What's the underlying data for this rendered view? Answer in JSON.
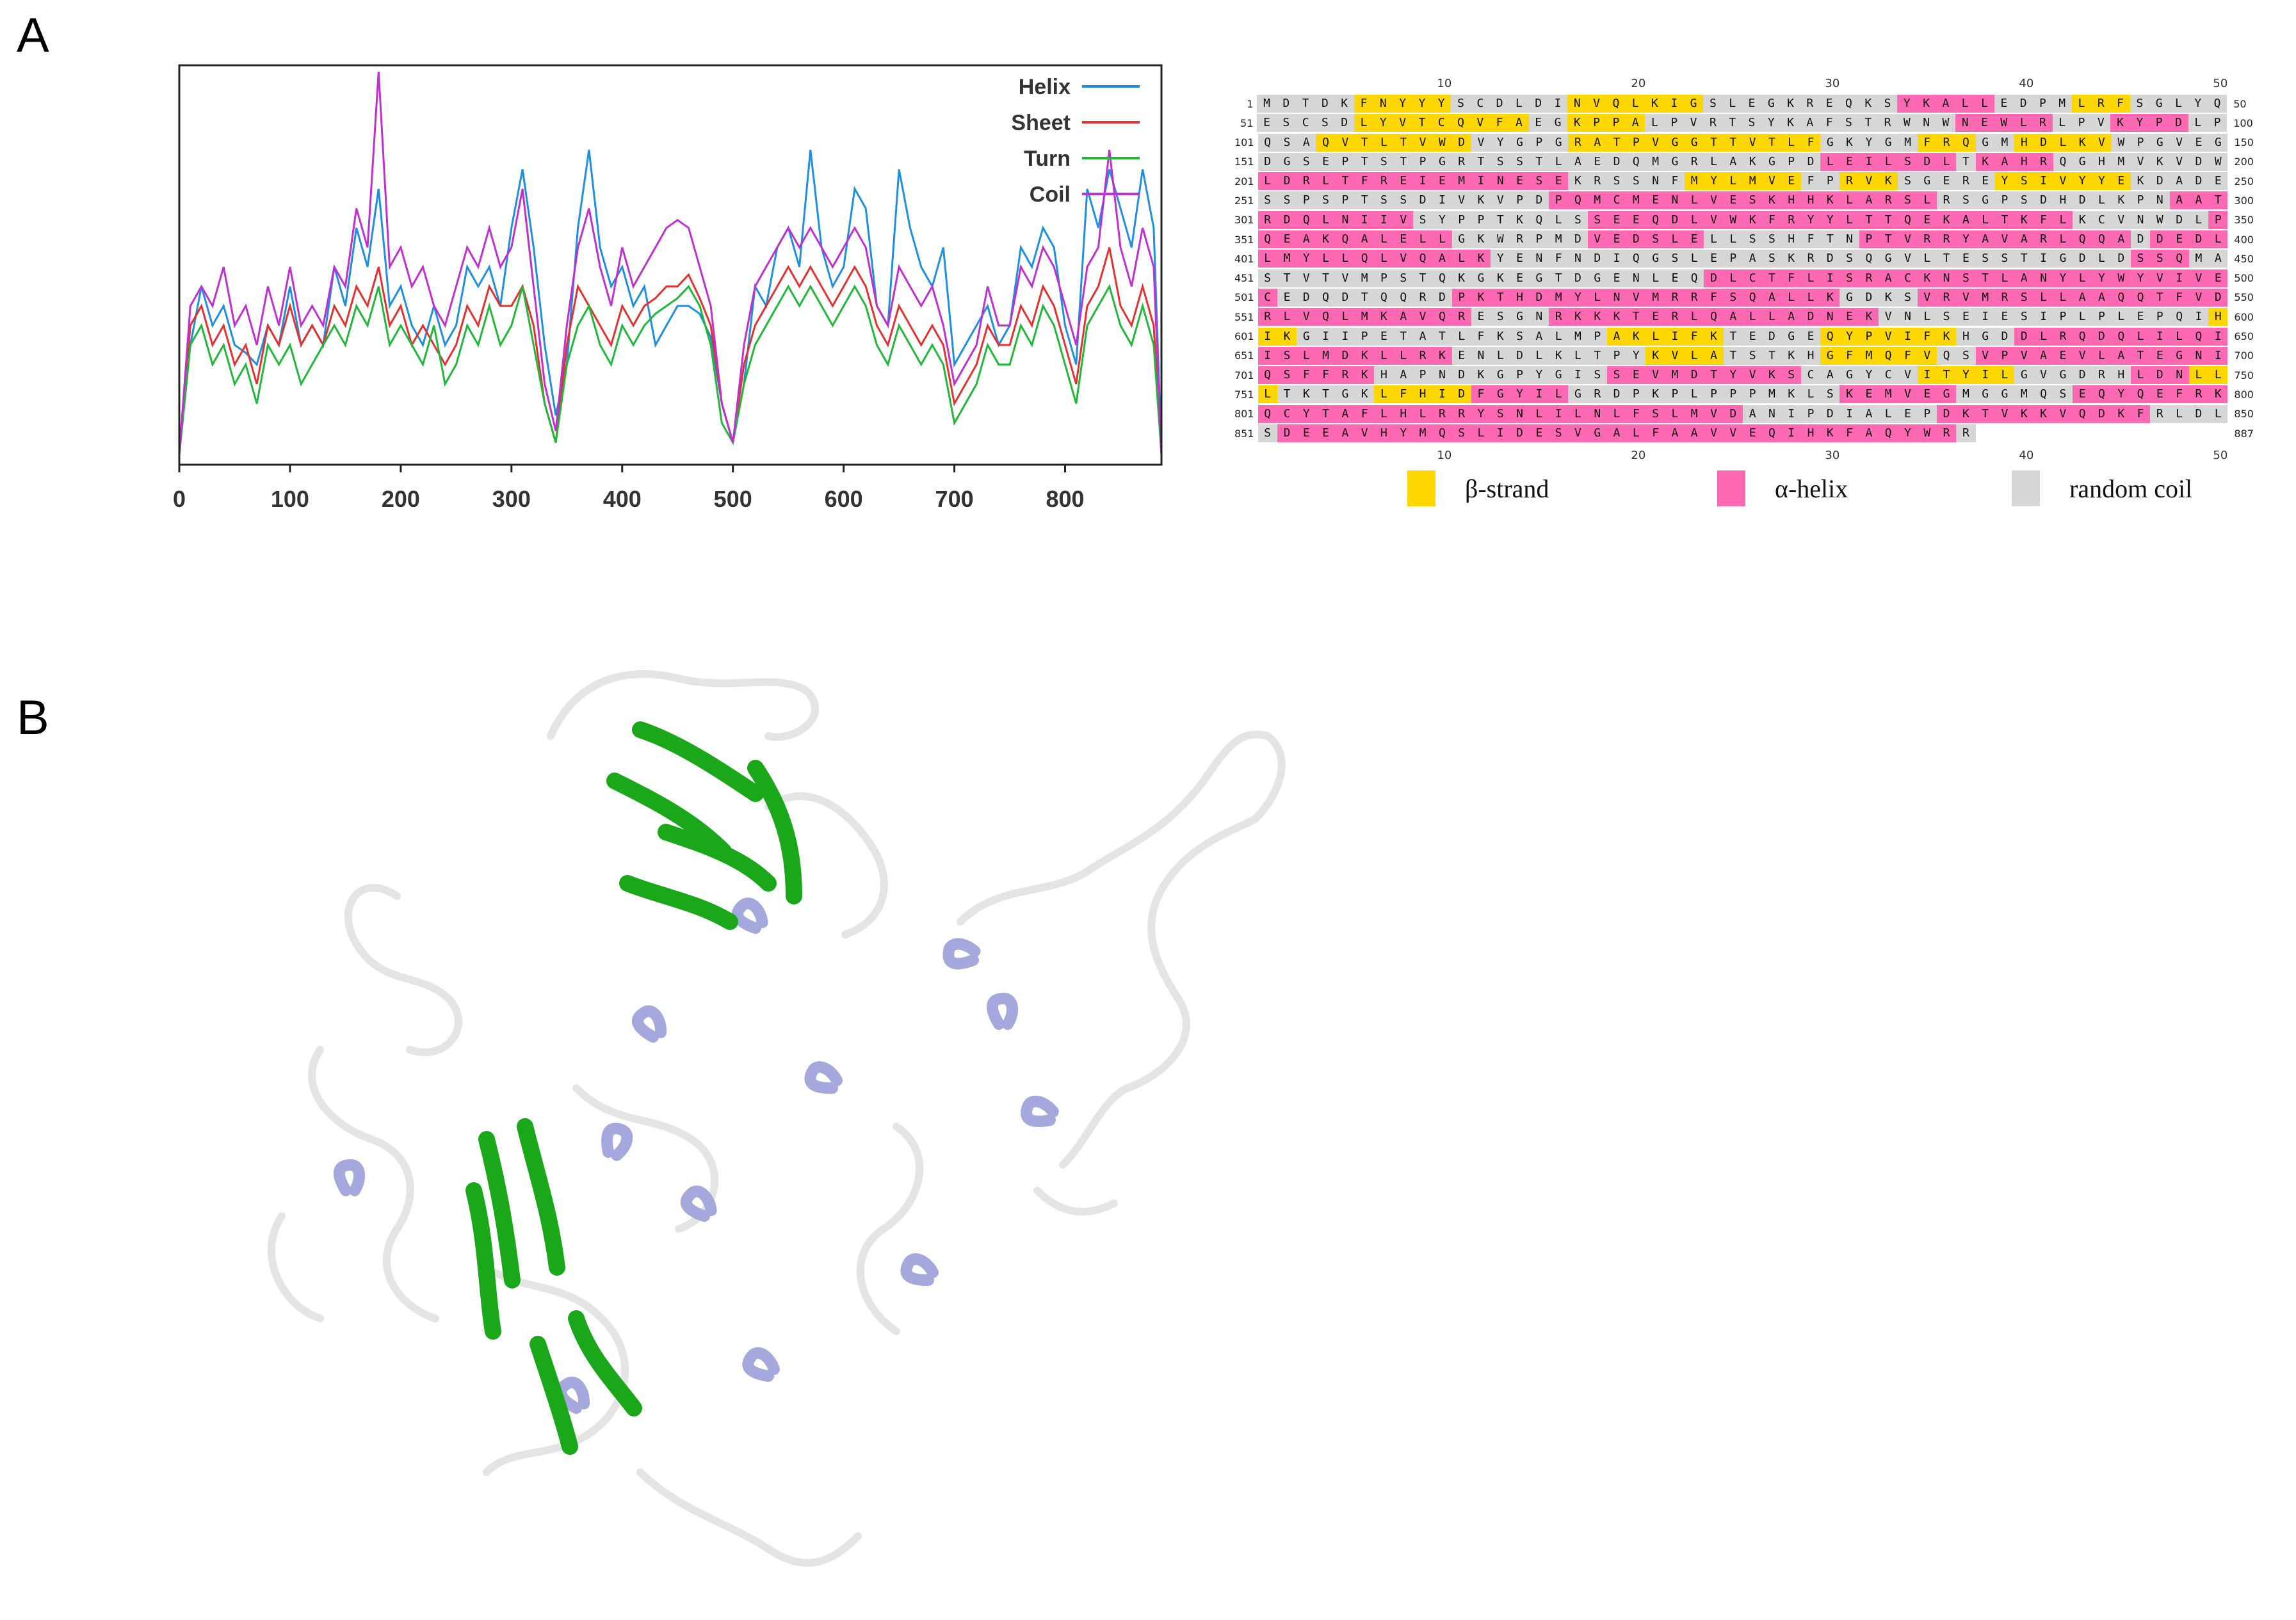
{
  "panels": {
    "a_label": "A",
    "b_label": "B"
  },
  "chart_data": {
    "type": "line",
    "title": "",
    "xlabel": "",
    "ylabel": "",
    "xlim": [
      0,
      887
    ],
    "x_ticks": [
      "0",
      "100",
      "200",
      "300",
      "400",
      "500",
      "600",
      "700",
      "800"
    ],
    "legend_position": "top-right",
    "grid": false,
    "series": [
      {
        "name": "Helix",
        "color": "#1e8fe0",
        "x": [
          0,
          10,
          20,
          30,
          40,
          50,
          60,
          70,
          80,
          90,
          100,
          110,
          120,
          130,
          140,
          150,
          160,
          170,
          180,
          190,
          200,
          210,
          220,
          230,
          240,
          250,
          260,
          270,
          280,
          290,
          300,
          310,
          320,
          330,
          340,
          350,
          360,
          370,
          380,
          390,
          400,
          410,
          420,
          430,
          440,
          450,
          460,
          470,
          480,
          490,
          500,
          510,
          520,
          530,
          540,
          550,
          560,
          570,
          580,
          590,
          600,
          610,
          620,
          630,
          640,
          650,
          660,
          670,
          680,
          690,
          700,
          710,
          720,
          730,
          740,
          750,
          760,
          770,
          780,
          790,
          800,
          810,
          820,
          830,
          840,
          850,
          860,
          870,
          880,
          887
        ],
        "y": [
          0.02,
          0.3,
          0.45,
          0.35,
          0.4,
          0.3,
          0.28,
          0.25,
          0.35,
          0.3,
          0.45,
          0.3,
          0.35,
          0.3,
          0.5,
          0.4,
          0.6,
          0.5,
          0.7,
          0.4,
          0.45,
          0.35,
          0.3,
          0.4,
          0.3,
          0.35,
          0.5,
          0.45,
          0.5,
          0.4,
          0.6,
          0.75,
          0.55,
          0.3,
          0.12,
          0.25,
          0.6,
          0.8,
          0.55,
          0.45,
          0.5,
          0.4,
          0.45,
          0.3,
          0.35,
          0.4,
          0.4,
          0.38,
          0.32,
          0.15,
          0.05,
          0.2,
          0.45,
          0.4,
          0.55,
          0.6,
          0.5,
          0.8,
          0.55,
          0.45,
          0.5,
          0.7,
          0.65,
          0.4,
          0.35,
          0.75,
          0.6,
          0.5,
          0.45,
          0.55,
          0.25,
          0.3,
          0.35,
          0.4,
          0.3,
          0.35,
          0.55,
          0.5,
          0.6,
          0.55,
          0.35,
          0.25,
          0.7,
          0.6,
          0.75,
          0.65,
          0.55,
          0.75,
          0.6,
          0.02
        ]
      },
      {
        "name": "Sheet",
        "color": "#e53030",
        "x": [
          0,
          10,
          20,
          30,
          40,
          50,
          60,
          70,
          80,
          90,
          100,
          110,
          120,
          130,
          140,
          150,
          160,
          170,
          180,
          190,
          200,
          210,
          220,
          230,
          240,
          250,
          260,
          270,
          280,
          290,
          300,
          310,
          320,
          330,
          340,
          350,
          360,
          370,
          380,
          390,
          400,
          410,
          420,
          430,
          440,
          450,
          460,
          470,
          480,
          490,
          500,
          510,
          520,
          530,
          540,
          550,
          560,
          570,
          580,
          590,
          600,
          610,
          620,
          630,
          640,
          650,
          660,
          670,
          680,
          690,
          700,
          710,
          720,
          730,
          740,
          750,
          760,
          770,
          780,
          790,
          800,
          810,
          820,
          830,
          840,
          850,
          860,
          870,
          880,
          887
        ],
        "y": [
          0.02,
          0.35,
          0.4,
          0.3,
          0.35,
          0.25,
          0.3,
          0.2,
          0.35,
          0.3,
          0.4,
          0.3,
          0.35,
          0.3,
          0.4,
          0.35,
          0.45,
          0.4,
          0.5,
          0.35,
          0.4,
          0.3,
          0.35,
          0.3,
          0.25,
          0.3,
          0.4,
          0.35,
          0.45,
          0.4,
          0.4,
          0.45,
          0.35,
          0.15,
          0.05,
          0.3,
          0.45,
          0.4,
          0.35,
          0.3,
          0.4,
          0.35,
          0.4,
          0.42,
          0.45,
          0.45,
          0.48,
          0.42,
          0.35,
          0.15,
          0.05,
          0.25,
          0.35,
          0.4,
          0.45,
          0.5,
          0.45,
          0.5,
          0.45,
          0.4,
          0.45,
          0.5,
          0.45,
          0.35,
          0.3,
          0.4,
          0.35,
          0.3,
          0.35,
          0.3,
          0.15,
          0.2,
          0.25,
          0.35,
          0.3,
          0.3,
          0.4,
          0.35,
          0.45,
          0.4,
          0.3,
          0.2,
          0.4,
          0.45,
          0.55,
          0.4,
          0.35,
          0.45,
          0.35,
          0.02
        ]
      },
      {
        "name": "Turn",
        "color": "#1fb83a",
        "x": [
          0,
          10,
          20,
          30,
          40,
          50,
          60,
          70,
          80,
          90,
          100,
          110,
          120,
          130,
          140,
          150,
          160,
          170,
          180,
          190,
          200,
          210,
          220,
          230,
          240,
          250,
          260,
          270,
          280,
          290,
          300,
          310,
          320,
          330,
          340,
          350,
          360,
          370,
          380,
          390,
          400,
          410,
          420,
          430,
          440,
          450,
          460,
          470,
          480,
          490,
          500,
          510,
          520,
          530,
          540,
          550,
          560,
          570,
          580,
          590,
          600,
          610,
          620,
          630,
          640,
          650,
          660,
          670,
          680,
          690,
          700,
          710,
          720,
          730,
          740,
          750,
          760,
          770,
          780,
          790,
          800,
          810,
          820,
          830,
          840,
          850,
          860,
          870,
          880,
          887
        ],
        "y": [
          0.02,
          0.3,
          0.35,
          0.25,
          0.3,
          0.2,
          0.25,
          0.15,
          0.3,
          0.25,
          0.3,
          0.2,
          0.25,
          0.3,
          0.35,
          0.3,
          0.4,
          0.35,
          0.45,
          0.3,
          0.35,
          0.3,
          0.25,
          0.35,
          0.2,
          0.25,
          0.35,
          0.3,
          0.4,
          0.3,
          0.35,
          0.45,
          0.3,
          0.15,
          0.05,
          0.25,
          0.35,
          0.4,
          0.3,
          0.25,
          0.35,
          0.3,
          0.35,
          0.38,
          0.4,
          0.42,
          0.45,
          0.4,
          0.3,
          0.1,
          0.05,
          0.2,
          0.3,
          0.35,
          0.4,
          0.45,
          0.4,
          0.45,
          0.4,
          0.35,
          0.4,
          0.45,
          0.4,
          0.3,
          0.25,
          0.35,
          0.3,
          0.25,
          0.3,
          0.25,
          0.1,
          0.15,
          0.2,
          0.3,
          0.25,
          0.25,
          0.35,
          0.3,
          0.4,
          0.35,
          0.25,
          0.15,
          0.35,
          0.4,
          0.45,
          0.35,
          0.3,
          0.4,
          0.3,
          0.02
        ]
      },
      {
        "name": "Coil",
        "color": "#c030d0",
        "x": [
          0,
          10,
          20,
          30,
          40,
          50,
          60,
          70,
          80,
          90,
          100,
          110,
          120,
          130,
          140,
          150,
          160,
          170,
          180,
          190,
          200,
          210,
          220,
          230,
          240,
          250,
          260,
          270,
          280,
          290,
          300,
          310,
          320,
          330,
          340,
          350,
          360,
          370,
          380,
          390,
          400,
          410,
          420,
          430,
          440,
          450,
          460,
          470,
          480,
          490,
          500,
          510,
          520,
          530,
          540,
          550,
          560,
          570,
          580,
          590,
          600,
          610,
          620,
          630,
          640,
          650,
          660,
          670,
          680,
          690,
          700,
          710,
          720,
          730,
          740,
          750,
          760,
          770,
          780,
          790,
          800,
          810,
          820,
          830,
          840,
          850,
          860,
          870,
          880,
          887
        ],
        "y": [
          0.02,
          0.4,
          0.45,
          0.4,
          0.5,
          0.35,
          0.4,
          0.3,
          0.45,
          0.35,
          0.5,
          0.35,
          0.4,
          0.35,
          0.5,
          0.45,
          0.65,
          0.55,
          1.0,
          0.5,
          0.55,
          0.45,
          0.5,
          0.4,
          0.35,
          0.45,
          0.55,
          0.5,
          0.6,
          0.5,
          0.55,
          0.7,
          0.45,
          0.2,
          0.08,
          0.35,
          0.55,
          0.65,
          0.5,
          0.4,
          0.55,
          0.45,
          0.5,
          0.55,
          0.6,
          0.62,
          0.6,
          0.5,
          0.4,
          0.15,
          0.05,
          0.3,
          0.45,
          0.5,
          0.55,
          0.6,
          0.55,
          0.6,
          0.55,
          0.5,
          0.55,
          0.6,
          0.55,
          0.4,
          0.35,
          0.5,
          0.45,
          0.4,
          0.45,
          0.35,
          0.2,
          0.25,
          0.3,
          0.45,
          0.35,
          0.35,
          0.5,
          0.45,
          0.55,
          0.5,
          0.4,
          0.3,
          0.5,
          0.55,
          0.8,
          0.55,
          0.45,
          0.6,
          0.5,
          0.02
        ]
      }
    ]
  },
  "sequence": {
    "top_ticks": [
      "10",
      "20",
      "30",
      "40",
      "50"
    ],
    "bottom_ticks": [
      "10",
      "20",
      "30",
      "40",
      "50"
    ],
    "rows": [
      {
        "start": "1",
        "seq": "MDTDKFNYYYSCDLDINVQLKIGSLEGKREQKSYKALLEDPMLRFSGLYQ",
        "ss": "CCCCCEEEEECCCCCCEEEEEEECCCCCCCCCCHHHHHCCCCEEECCCCC",
        "end": "50"
      },
      {
        "start": "51",
        "seq": "ESCSDLYVTCQVFAEGKPPALPVRTSYKAFSTRWNWNEWLRLPVKYPDLP",
        "ss": "CCCCCEEEEEEEEECCEEEECCCCCCCCCCCCCCCCHHHHHCCCHHHHCC",
        "end": "100"
      },
      {
        "start": "101",
        "seq": "QSAQVTLTVWDVYGPGRATPVGGTTVTLFGKYGMFRQGMHDLKVWPGVEG",
        "ss": "CCCEEEEEEEECCCCCEEEEEEEEEEEEECCCCCEEECCEEEEECCCCCC",
        "end": "150"
      },
      {
        "start": "151",
        "seq": "DGSEPTSTPGRTSSTLAEDQMGRLAKGPDLEILSDLTKAHRQGHMVKVDW",
        "ss": "CCCCCCCCCCCCCCCCCCCCCCCCCCCCCHHHHHHHCHHHHCCCCCCCCC",
        "end": "200"
      },
      {
        "start": "201",
        "seq": "LDRLTFREIEMINESEKRSSNFMYLMVEFPRVKSGEREYSIVYYEKDADE",
        "ss": "HHHHHHHHHHHHHHHHCCCCCCEEEEEECCEEECCCCCEEEEEEECCCCC",
        "end": "250"
      },
      {
        "start": "251",
        "seq": "SSPSPTSSDIVKVPDPQMCMENLVESKHHKLARSLRSGPSDHDLKPNAAT",
        "ss": "CCCCCCCCCCCCCCCHHHHHHHHHHHHHHHHHHHHCCCCCCCCCCCCHHH",
        "end": "300"
      },
      {
        "start": "301",
        "seq": "RDQLNIIVSYPPTKQLSSEEQDLVWKFRYYLTTQEKALTKFLKCVNWDLP",
        "ss": "HHHHHHHHCCCCCCCCCHHHHHHHHHHHHHHHHHHHHHHHHHCCCCCCCH",
        "end": "350"
      },
      {
        "start": "351",
        "seq": "QEAKQALELLGKWRPMDVEDSLELLSSHFTNPTVRRYAVARLQQADDEDL",
        "ss": "HHHHHHHHHHCCCCCCCHHHHHHCCCCCCCCHHHHHHHHHHHHHHCHHHH",
        "end": "400"
      },
      {
        "start": "401",
        "seq": "LMYLLQLVQALKYENFNDIQGSLEPASKRDSQGVLTESSTIGDLDSSQMA",
        "ss": "HHHHHHHHHHHHCCCCCCCCCCCCCCCCCCCCCCCCCCCCCCCCCHHHCC",
        "end": "450"
      },
      {
        "start": "451",
        "seq": "STVTVMPSTQKGKEGTDGENLEQDLCTFLISRACKNSTLANYLYWYVIVE",
        "ss": "CCCCCCCCCCCCCCCCCCCCCCCHHHHHHHHHHHHHHHHHHHHHHHHHHH",
        "end": "500"
      },
      {
        "start": "501",
        "seq": "CEDQDTQQRDPKTHDMYLNVMRRFSQALLKGDKSVRVMRSLLAAQQTFVD",
        "ss": "HCCCCCCCCCHHHHHHHHHHHHHHHHHHHHCCCCHHHHHHHHHHHHHHHH",
        "end": "550"
      },
      {
        "start": "551",
        "seq": "RLVQLMKAVQRESGNRKKKTERLQALLADNEKVNLSEIESIPLPLEPQIH",
        "ss": "HHHHHHHHHHHCCCCHHHHHHHHHHHHHHHHHCCCCCCCCCCCCCCCCCE",
        "end": "600"
      },
      {
        "start": "601",
        "seq": "IKGIIPETATLFKSALMPAKLIFKTEDGEQYPVIFKHGDDLRQDQLILQI",
        "ss": "EECCCCCCCCCCCCCCCCEEEEEECCCCCEEEEEEECCCHHHHHHHHHHH",
        "end": "650"
      },
      {
        "start": "651",
        "seq": "ISLMDKLLRKENLDLKLTPYKVLATSTKHGFMQFVQSVPVAEVLATEGNI",
        "ss": "HHHHHHHHHHCCCCCCCCCCEEEECCCCCEEEEEECCHHHHHHHHHHHHH",
        "end": "700"
      },
      {
        "start": "701",
        "seq": "QSFFRKHAPNDKGPYGISSEVMDTYVKSCAGYCVITYILGVGDRHLDNLL",
        "ss": "HHHHHHCCCCCCCCCCCCHHHHHHHHHHCCCCCCEEEEECCCCCCHHHEE",
        "end": "750"
      },
      {
        "start": "751",
        "seq": "LTKTGKLFHIDFGYILGRDPKPLPPPMKLSKEMVEGMGGMQSEQYQEFRK",
        "ss": "ECCCCCEEEEEHHHHHCCCCCCCCCCCCCCHHHHHHCCCCCCHHHHHHHH",
        "end": "800"
      },
      {
        "start": "801",
        "seq": "QCYTAFLHLRRYSNLILNLFSLMVDANIPDIALEPDKTVKKVQDKFRLDL",
        "ss": "HHHHHHHHHHHHHHHHHHHHHHHHHCCCCCCCCCCHHHHHHHHHHHCCCC",
        "end": "850"
      },
      {
        "start": "851",
        "seq": "SDEEAVHYMQSLIDESVGALFAAVVEQIHKFAQYWRR",
        "ss": "CHHHHHHHHHHHHHHHHHHHHHHHHHHHHHHHHHHHC",
        "end": "887"
      }
    ]
  },
  "sequence_legend": [
    {
      "label": "β-strand",
      "color": "#ffd700"
    },
    {
      "label": "α-helix",
      "color": "#ff69b4"
    },
    {
      "label": "random coil",
      "color": "#d6d6d6"
    }
  ],
  "structure": {
    "helix_color": "#a5a8dc",
    "sheet_color": "#1aa81a",
    "coil_color": "#e4e4e4"
  }
}
